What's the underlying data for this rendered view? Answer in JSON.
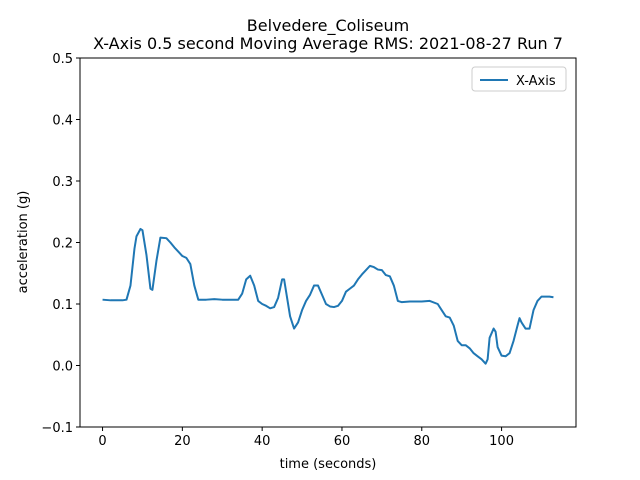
{
  "chart_data": {
    "type": "line",
    "title": "Belvedere_Coliseum",
    "subtitle": "X-Axis 0.5 second Moving Average RMS: 2021-08-27 Run 7",
    "x_label": "time (seconds)",
    "y_label": "acceleration (g)",
    "x": [
      0,
      2,
      5,
      6,
      7,
      8,
      8.5,
      9.5,
      10,
      11,
      12,
      12.5,
      13.5,
      14.5,
      16,
      17,
      18,
      19,
      20,
      21,
      22,
      23,
      24,
      26,
      28,
      30,
      32,
      34,
      35,
      36,
      37,
      38,
      39,
      40,
      41,
      42,
      43,
      44,
      45,
      45.5,
      46,
      47,
      48,
      49,
      50,
      51,
      52,
      53,
      54,
      55,
      56,
      57,
      58,
      59,
      60,
      61,
      62,
      63,
      64,
      65,
      66,
      67,
      68,
      69,
      70,
      71,
      72,
      73,
      74,
      75,
      77,
      80,
      82,
      84,
      85,
      86,
      87,
      88,
      89,
      90,
      91,
      92,
      93,
      94,
      95,
      96,
      96.5,
      97,
      98,
      98.5,
      99,
      100,
      101,
      102,
      103,
      104,
      104.5,
      105,
      106,
      107,
      108,
      109,
      110,
      112,
      113
    ],
    "series": [
      {
        "name": "X-Axis",
        "color": "#1f77b4",
        "values": [
          0.107,
          0.106,
          0.106,
          0.107,
          0.13,
          0.19,
          0.21,
          0.222,
          0.22,
          0.18,
          0.125,
          0.123,
          0.17,
          0.208,
          0.207,
          0.2,
          0.192,
          0.185,
          0.178,
          0.175,
          0.165,
          0.13,
          0.107,
          0.107,
          0.108,
          0.107,
          0.107,
          0.107,
          0.117,
          0.14,
          0.146,
          0.13,
          0.105,
          0.1,
          0.097,
          0.093,
          0.095,
          0.11,
          0.14,
          0.14,
          0.12,
          0.08,
          0.06,
          0.07,
          0.09,
          0.105,
          0.115,
          0.13,
          0.13,
          0.115,
          0.1,
          0.096,
          0.095,
          0.097,
          0.105,
          0.12,
          0.125,
          0.13,
          0.14,
          0.148,
          0.155,
          0.162,
          0.16,
          0.156,
          0.155,
          0.147,
          0.145,
          0.13,
          0.105,
          0.103,
          0.104,
          0.104,
          0.105,
          0.1,
          0.09,
          0.08,
          0.078,
          0.065,
          0.04,
          0.033,
          0.033,
          0.028,
          0.02,
          0.015,
          0.01,
          0.003,
          0.01,
          0.045,
          0.06,
          0.055,
          0.03,
          0.016,
          0.015,
          0.02,
          0.04,
          0.065,
          0.077,
          0.07,
          0.06,
          0.06,
          0.09,
          0.105,
          0.112,
          0.112,
          0.111
        ]
      }
    ],
    "xlim": [
      -5.65,
      118.65
    ],
    "xticks": [
      0,
      20,
      40,
      60,
      80,
      100
    ],
    "ylim": [
      -0.1,
      0.5
    ],
    "yticks": [
      {
        "value": -0.1,
        "label": "−0.1"
      },
      {
        "value": 0,
        "label": "0.0"
      },
      0.1,
      0.2,
      0.3,
      0.4,
      0.5
    ],
    "legend": "upper right"
  }
}
